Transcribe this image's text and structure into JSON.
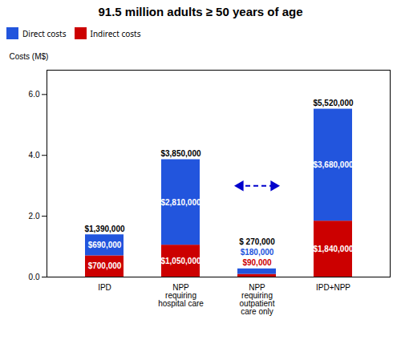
{
  "chart_data": {
    "type": "bar",
    "title": "91.5 million adults ≥ 50 years of age",
    "ylabel": "Costs (M$)",
    "categories": [
      "IPD",
      "NPP\nrequiring\nhospital care",
      "NPP\nrequiring\noutpatient\ncare only",
      "IPD+NPP"
    ],
    "series": [
      {
        "name": "Direct costs",
        "color": "#2255DD",
        "values": [
          0.69,
          2.81,
          0.18,
          3.68
        ],
        "value_labels": [
          "$690,000",
          "$2,810,000",
          "$180,000",
          "$3,680,000"
        ]
      },
      {
        "name": "Indirect costs",
        "color": "#CC0000",
        "values": [
          0.7,
          1.05,
          0.09,
          1.84
        ],
        "value_labels": [
          "$700,000",
          "$1,050,000",
          "$90,000",
          "$1,840,000"
        ]
      }
    ],
    "stacked": true,
    "data_labels": true,
    "totals": [
      1.39,
      3.85,
      0.27,
      5.52
    ],
    "total_labels": [
      "$1,390,000",
      "$3,850,000",
      "$ 270,000",
      "$5,520,000"
    ],
    "annotations": [
      {
        "type": "arrow",
        "category": "NPP\nrequiring\noutpatient\ncare only",
        "y": 3,
        "color": "#0000CC",
        "line_style": "dashed",
        "marker": "both"
      }
    ],
    "ylim": [
      0,
      6.8
    ],
    "yticks": [
      0,
      2,
      4,
      6
    ],
    "grid": false,
    "legend": "upper left"
  }
}
